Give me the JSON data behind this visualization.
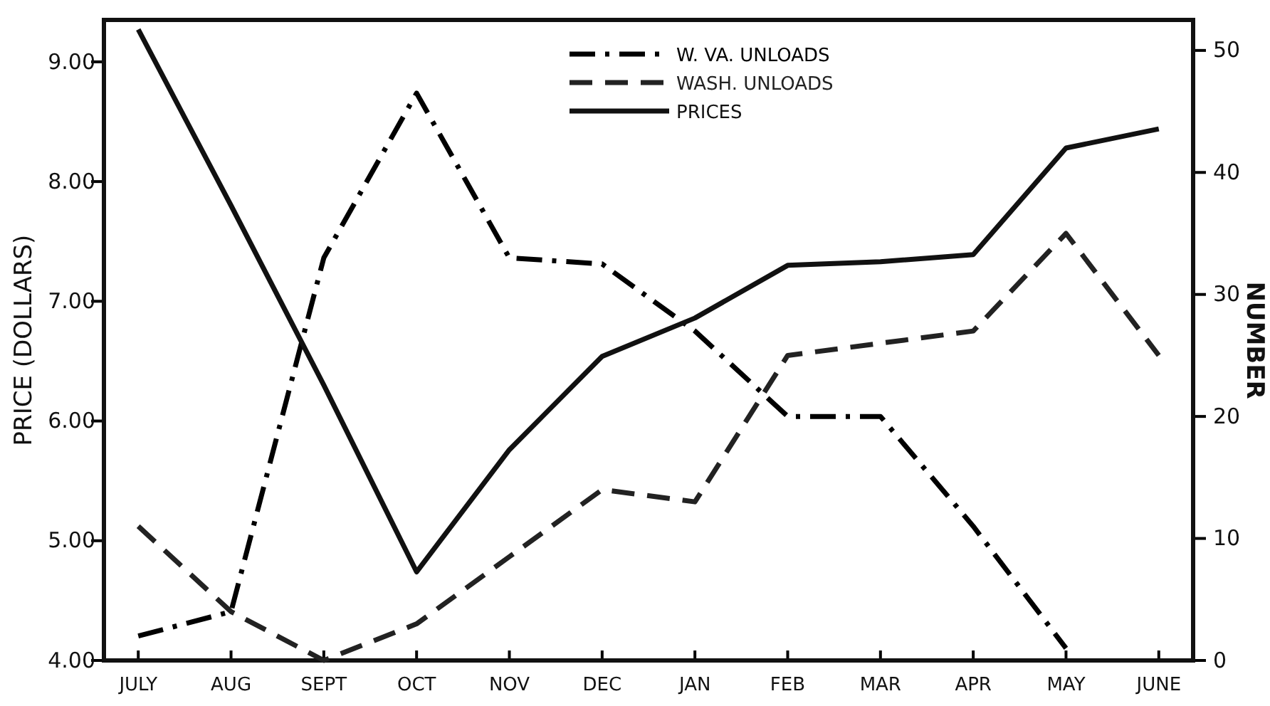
{
  "chart_data": {
    "type": "line",
    "ylabel": "PRICE (DOLLARS)",
    "y2label": "NUMBER",
    "categories": [
      "JULY",
      "AUG",
      "SEPT",
      "OCT",
      "NOV",
      "DEC",
      "JAN",
      "FEB",
      "MAR",
      "APR",
      "MAY",
      "JUNE"
    ],
    "series": [
      {
        "name": "W. VA. UNLOADS",
        "color": "#000000",
        "axis": "y2",
        "line_style": "dashdot",
        "values": [
          2,
          4,
          33,
          46.5,
          33,
          32.5,
          27,
          20,
          20,
          11,
          1,
          null
        ]
      },
      {
        "name": "WASH. UNLOADS",
        "color": "#222222",
        "axis": "y2",
        "line_style": "dashed",
        "values": [
          11,
          4,
          0,
          3,
          8.5,
          14,
          13,
          25,
          26,
          27,
          35,
          25
        ]
      },
      {
        "name": "PRICES",
        "color": "#111111",
        "line_style": "solid",
        "values": [
          9.27,
          7.8,
          6.3,
          4.74,
          5.76,
          6.54,
          6.86,
          7.3,
          7.33,
          7.39,
          8.28,
          8.44
        ]
      }
    ],
    "ylim": [
      4,
      9.35
    ],
    "yticks": [
      {
        "value": 4,
        "label": "4.00"
      },
      {
        "value": 5,
        "label": "5.00"
      },
      {
        "value": 6,
        "label": "6.00"
      },
      {
        "value": 7,
        "label": "7.00"
      },
      {
        "value": 8,
        "label": "8.00"
      },
      {
        "value": 9,
        "label": "9.00"
      }
    ],
    "y2lim": [
      0,
      52.5
    ],
    "y2ticks": [
      0,
      10,
      20,
      30,
      40,
      50
    ],
    "grid": false,
    "legend": "top right",
    "marker": "none"
  }
}
